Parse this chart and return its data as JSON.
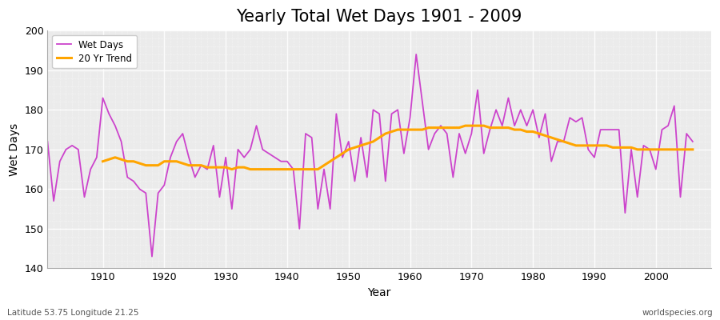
{
  "title": "Yearly Total Wet Days 1901 - 2009",
  "xlabel": "Year",
  "ylabel": "Wet Days",
  "xlim": [
    1901,
    2009
  ],
  "ylim": [
    140,
    200
  ],
  "yticks": [
    140,
    150,
    160,
    170,
    180,
    190,
    200
  ],
  "xticks": [
    1910,
    1920,
    1930,
    1940,
    1950,
    1960,
    1970,
    1980,
    1990,
    2000
  ],
  "fig_background": "#ffffff",
  "plot_background": "#ebebeb",
  "wet_days_color": "#cc44cc",
  "trend_color": "#FFA500",
  "legend_wet": "Wet Days",
  "legend_trend": "20 Yr Trend",
  "subtitle_left": "Latitude 53.75 Longitude 21.25",
  "subtitle_right": "worldspecies.org",
  "wet_days": {
    "1901": 172,
    "1902": 157,
    "1903": 167,
    "1904": 170,
    "1905": 171,
    "1906": 170,
    "1907": 158,
    "1908": 165,
    "1909": 168,
    "1910": 183,
    "1911": 179,
    "1912": 176,
    "1913": 172,
    "1914": 163,
    "1915": 162,
    "1916": 160,
    "1917": 159,
    "1918": 143,
    "1919": 159,
    "1920": 161,
    "1921": 168,
    "1922": 172,
    "1923": 174,
    "1924": 168,
    "1925": 163,
    "1926": 166,
    "1927": 165,
    "1928": 171,
    "1929": 158,
    "1930": 168,
    "1931": 155,
    "1932": 170,
    "1933": 168,
    "1934": 170,
    "1935": 176,
    "1936": 170,
    "1937": 169,
    "1938": 168,
    "1939": 167,
    "1940": 167,
    "1941": 165,
    "1942": 150,
    "1943": 174,
    "1944": 173,
    "1945": 155,
    "1946": 165,
    "1947": 155,
    "1948": 179,
    "1949": 168,
    "1950": 172,
    "1951": 162,
    "1952": 173,
    "1953": 163,
    "1954": 180,
    "1955": 179,
    "1956": 162,
    "1957": 179,
    "1958": 180,
    "1959": 169,
    "1960": 178,
    "1961": 194,
    "1962": 182,
    "1963": 170,
    "1964": 174,
    "1965": 176,
    "1966": 174,
    "1967": 163,
    "1968": 174,
    "1969": 169,
    "1970": 174,
    "1971": 185,
    "1972": 169,
    "1973": 175,
    "1974": 180,
    "1975": 176,
    "1976": 183,
    "1977": 176,
    "1978": 180,
    "1979": 176,
    "1980": 180,
    "1981": 173,
    "1982": 179,
    "1983": 167,
    "1984": 172,
    "1985": 172,
    "1986": 178,
    "1987": 177,
    "1988": 178,
    "1989": 170,
    "1990": 168,
    "1991": 175,
    "1992": 175,
    "1993": 175,
    "1994": 175,
    "1995": 154,
    "1996": 170,
    "1997": 158,
    "1998": 171,
    "1999": 170,
    "2000": 165,
    "2001": 175,
    "2002": 176,
    "2003": 181,
    "2004": 158,
    "2005": 174,
    "2006": 172
  },
  "trend_days": {
    "1910": 167,
    "1911": 167.5,
    "1912": 168,
    "1913": 167.5,
    "1914": 167,
    "1915": 167,
    "1916": 166.5,
    "1917": 166,
    "1918": 166,
    "1919": 166,
    "1920": 167,
    "1921": 167,
    "1922": 167,
    "1923": 166.5,
    "1924": 166,
    "1925": 166,
    "1926": 166,
    "1927": 165.5,
    "1928": 165.5,
    "1929": 165.5,
    "1930": 165.5,
    "1931": 165,
    "1932": 165.5,
    "1933": 165.5,
    "1934": 165,
    "1935": 165,
    "1936": 165,
    "1937": 165,
    "1938": 165,
    "1939": 165,
    "1940": 165,
    "1941": 165,
    "1942": 165,
    "1943": 165,
    "1944": 165,
    "1945": 165,
    "1946": 166,
    "1947": 167,
    "1948": 168,
    "1949": 169,
    "1950": 170,
    "1951": 170.5,
    "1952": 171,
    "1953": 171.5,
    "1954": 172,
    "1955": 173,
    "1956": 174,
    "1957": 174.5,
    "1958": 175,
    "1959": 175,
    "1960": 175,
    "1961": 175,
    "1962": 175,
    "1963": 175.5,
    "1964": 175.5,
    "1965": 175.5,
    "1966": 175.5,
    "1967": 175.5,
    "1968": 175.5,
    "1969": 176,
    "1970": 176,
    "1971": 176,
    "1972": 176,
    "1973": 175.5,
    "1974": 175.5,
    "1975": 175.5,
    "1976": 175.5,
    "1977": 175,
    "1978": 175,
    "1979": 174.5,
    "1980": 174.5,
    "1981": 174,
    "1982": 173.5,
    "1983": 173,
    "1984": 172.5,
    "1985": 172,
    "1986": 171.5,
    "1987": 171,
    "1988": 171,
    "1989": 171,
    "1990": 171,
    "1991": 171,
    "1992": 171,
    "1993": 170.5,
    "1994": 170.5,
    "1995": 170.5,
    "1996": 170.5,
    "1997": 170,
    "1998": 170,
    "1999": 170,
    "2000": 170,
    "2001": 170,
    "2002": 170,
    "2003": 170,
    "2004": 170,
    "2005": 170,
    "2006": 170
  }
}
